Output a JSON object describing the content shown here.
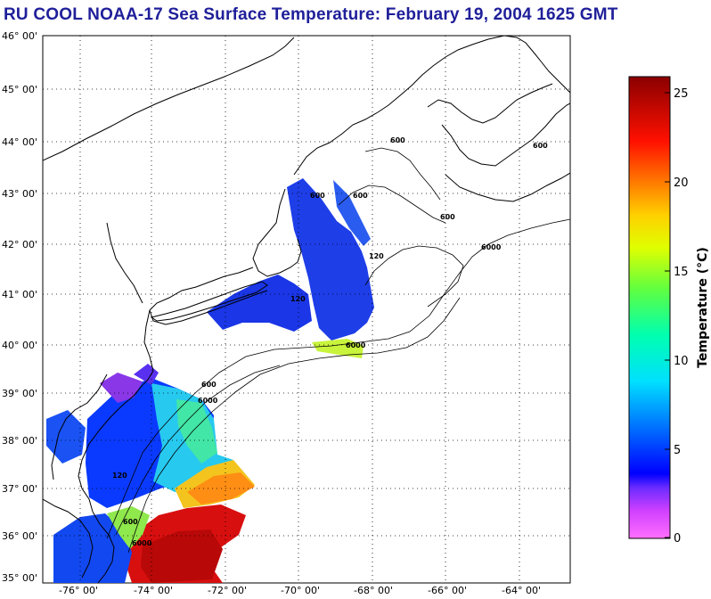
{
  "title": "RU COOL  NOAA-17  Sea Surface Temperature:  February 19, 2004 1625 GMT",
  "latitude_labels": [
    "46° 00'",
    "45° 00'",
    "44° 00'",
    "43° 00'",
    "42° 00'",
    "41° 00'",
    "40° 00'",
    "39° 00'",
    "38° 00'",
    "37° 00'",
    "36° 00'",
    "35° 00'"
  ],
  "longitude_labels": [
    "-76° 00'",
    "-74° 00'",
    "-72° 00'",
    "-70° 00'",
    "-68° 00'",
    "-66° 00'",
    "-64° 00'"
  ],
  "isobath_labels": [
    "600",
    "600",
    "600",
    "600",
    "120",
    "120",
    "600",
    "6000",
    "6000",
    "600",
    "6000",
    "120",
    "600",
    "6000"
  ],
  "colorbar": {
    "label": "Temperature (°C)",
    "ticks": [
      "25",
      "20",
      "15",
      "10",
      "5",
      "0"
    ],
    "min": 0,
    "max": 26
  },
  "colors": {
    "title": "#1f1f9a",
    "land": "#ffffff",
    "coast": "#000000"
  }
}
